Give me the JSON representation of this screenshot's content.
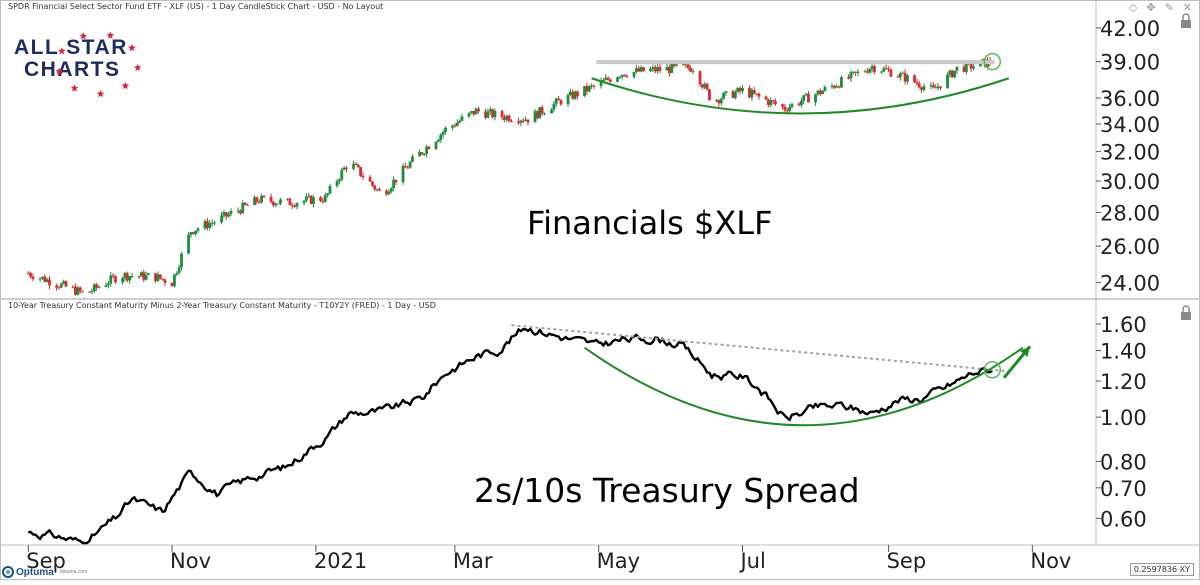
{
  "toolbar": {
    "icons": [
      "diamond-icon",
      "pin-icon",
      "edit-icon",
      "close-icon"
    ]
  },
  "logo": {
    "line1": "ALL STAR",
    "line2": "CHARTS",
    "star_color": "#d7263d",
    "text_color": "#1f2d5c"
  },
  "footer": {
    "brand": "Optuma",
    "site": "optuma.com",
    "readout": "0.2597836 XY"
  },
  "chart_data": [
    {
      "type": "candlestick",
      "panel_title": "SPDR Financial Select Sector Fund ETF - XLF (US) - 1 Day CandleStick Chart - USD - No Layout",
      "label": "Financials $XLF",
      "label_color": "#1c1f8a",
      "y_scale": "log",
      "ylim": [
        23.2,
        43.3
      ],
      "y_ticks": [
        "42.00",
        "39.00",
        "36.00",
        "34.00",
        "32.00",
        "30.00",
        "28.00",
        "26.00",
        "24.00"
      ],
      "up_color": "#1e8e3e",
      "down_color": "#d32f2f",
      "resistance": {
        "value": 38.95,
        "from": "2021-04-30",
        "to": "2021-10-16",
        "color": "#c8c8c8"
      },
      "anchors": [
        [
          "2020-09-01",
          24.5
        ],
        [
          "2020-09-25",
          23.4
        ],
        [
          "2020-10-10",
          24.4
        ],
        [
          "2020-10-25",
          24.3
        ],
        [
          "2020-11-01",
          24.0
        ],
        [
          "2020-11-09",
          26.9
        ],
        [
          "2020-11-20",
          27.5
        ],
        [
          "2020-12-08",
          28.8
        ],
        [
          "2020-12-20",
          28.6
        ],
        [
          "2021-01-05",
          28.9
        ],
        [
          "2021-01-15",
          31.3
        ],
        [
          "2021-01-29",
          29.1
        ],
        [
          "2021-02-10",
          31.2
        ],
        [
          "2021-02-25",
          33.6
        ],
        [
          "2021-03-10",
          35.0
        ],
        [
          "2021-03-20",
          34.6
        ],
        [
          "2021-04-01",
          34.4
        ],
        [
          "2021-04-15",
          35.8
        ],
        [
          "2021-04-30",
          37.0
        ],
        [
          "2021-05-10",
          38.0
        ],
        [
          "2021-05-25",
          38.3
        ],
        [
          "2021-06-10",
          38.5
        ],
        [
          "2021-06-18",
          35.8
        ],
        [
          "2021-07-01",
          36.6
        ],
        [
          "2021-07-19",
          35.2
        ],
        [
          "2021-08-01",
          36.3
        ],
        [
          "2021-08-15",
          37.6
        ],
        [
          "2021-08-25",
          38.6
        ],
        [
          "2021-09-01",
          38.2
        ],
        [
          "2021-09-10",
          37.5
        ],
        [
          "2021-09-20",
          36.6
        ],
        [
          "2021-09-30",
          38.4
        ],
        [
          "2021-10-08",
          38.7
        ],
        [
          "2021-10-15",
          39.0
        ]
      ],
      "arc": {
        "from": "2021-04-28",
        "to": "2021-10-22",
        "top_value": 37.6,
        "bottom_value": 34.8,
        "color": "#1f8a25"
      },
      "circle": {
        "date": "2021-10-15",
        "value": 39.0,
        "color": "#5cb85c"
      }
    },
    {
      "type": "line",
      "panel_title": "10-Year Treasury Constant Maturity Minus 2-Year Treasury Constant Maturity - T10Y2Y (FRED) - 1 Day - USD",
      "label": "2s/10s Treasury Spread",
      "label_color": "#111111",
      "y_scale": "log",
      "ylim": [
        0.53,
        1.7
      ],
      "y_ticks": [
        "1.60",
        "1.40",
        "1.20",
        "1.00",
        "0.80",
        "0.70",
        "0.60"
      ],
      "line_color": "#000000",
      "points": [
        [
          "2020-09-01",
          0.56
        ],
        [
          "2020-09-12",
          0.55
        ],
        [
          "2020-09-25",
          0.53
        ],
        [
          "2020-10-08",
          0.6
        ],
        [
          "2020-10-15",
          0.66
        ],
        [
          "2020-10-28",
          0.62
        ],
        [
          "2020-11-09",
          0.76
        ],
        [
          "2020-11-20",
          0.68
        ],
        [
          "2020-12-05",
          0.74
        ],
        [
          "2020-12-20",
          0.78
        ],
        [
          "2021-01-06",
          0.91
        ],
        [
          "2021-01-15",
          1.02
        ],
        [
          "2021-01-29",
          1.03
        ],
        [
          "2021-02-15",
          1.1
        ],
        [
          "2021-02-25",
          1.25
        ],
        [
          "2021-03-10",
          1.36
        ],
        [
          "2021-03-20",
          1.41
        ],
        [
          "2021-03-31",
          1.58
        ],
        [
          "2021-04-15",
          1.5
        ],
        [
          "2021-04-30",
          1.44
        ],
        [
          "2021-05-12",
          1.48
        ],
        [
          "2021-05-25",
          1.49
        ],
        [
          "2021-06-05",
          1.44
        ],
        [
          "2021-06-18",
          1.24
        ],
        [
          "2021-07-01",
          1.23
        ],
        [
          "2021-07-08",
          1.16
        ],
        [
          "2021-07-19",
          0.99
        ],
        [
          "2021-08-01",
          1.05
        ],
        [
          "2021-08-12",
          1.06
        ],
        [
          "2021-08-25",
          1.02
        ],
        [
          "2021-09-05",
          1.09
        ],
        [
          "2021-09-15",
          1.1
        ],
        [
          "2021-09-25",
          1.16
        ],
        [
          "2021-10-08",
          1.26
        ],
        [
          "2021-10-15",
          1.27
        ]
      ],
      "trendline": {
        "from": [
          "2021-03-25",
          1.59
        ],
        "to": [
          "2021-10-22",
          1.26
        ],
        "color": "#9aa3b0"
      },
      "arc": {
        "from": "2021-04-25",
        "to": "2021-10-28",
        "top_value": 1.42,
        "bottom_value": 0.96,
        "color": "#1f8a25"
      },
      "circle": {
        "date": "2021-10-15",
        "value": 1.27,
        "color": "#5cb85c"
      },
      "arrow": {
        "from": [
          "2021-10-20",
          1.22
        ],
        "to": [
          "2021-10-31",
          1.43
        ],
        "color": "#1f8a25"
      }
    }
  ],
  "x_axis": {
    "ticks": [
      {
        "label": "Sep",
        "date": "2020-09-01"
      },
      {
        "label": "Nov",
        "date": "2020-11-01"
      },
      {
        "label": "2021",
        "date": "2021-01-01"
      },
      {
        "label": "Mar",
        "date": "2021-03-01"
      },
      {
        "label": "May",
        "date": "2021-05-01"
      },
      {
        "label": "Jul",
        "date": "2021-07-01"
      },
      {
        "label": "Sep",
        "date": "2021-09-01"
      },
      {
        "label": "Nov",
        "date": "2021-11-01"
      }
    ]
  }
}
